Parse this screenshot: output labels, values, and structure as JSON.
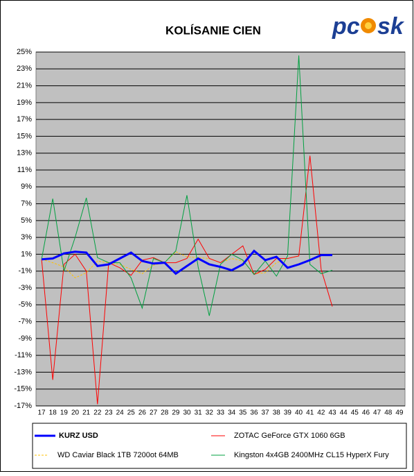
{
  "chart_data": {
    "type": "line",
    "title": "KOLÍSANIE CIEN",
    "logo": [
      "pc",
      "sk"
    ],
    "categories": [
      "17",
      "18",
      "19",
      "20",
      "21",
      "22",
      "23",
      "24",
      "25",
      "26",
      "27",
      "28",
      "29",
      "30",
      "31",
      "32",
      "33",
      "34",
      "35",
      "36",
      "37",
      "38",
      "39",
      "40",
      "41",
      "42",
      "43",
      "44",
      "45",
      "46",
      "47",
      "48",
      "49"
    ],
    "ylim": [
      -17,
      25
    ],
    "yticks": [
      {
        "value": -17,
        "label": "-17%"
      },
      {
        "value": -15,
        "label": "-15%"
      },
      {
        "value": -13,
        "label": "-13%"
      },
      {
        "value": -11,
        "label": "-11%"
      },
      {
        "value": -9,
        "label": "-9%"
      },
      {
        "value": -7,
        "label": "-7%"
      },
      {
        "value": -5,
        "label": "-5%"
      },
      {
        "value": -3,
        "label": "-3%"
      },
      {
        "value": -1,
        "label": "-1%"
      },
      {
        "value": 1,
        "label": "1%"
      },
      {
        "value": 3,
        "label": "3%"
      },
      {
        "value": 5,
        "label": "5%"
      },
      {
        "value": 7,
        "label": "7%"
      },
      {
        "value": 9,
        "label": "9%"
      },
      {
        "value": 11,
        "label": "11%"
      },
      {
        "value": 13,
        "label": "13%"
      },
      {
        "value": 15,
        "label": "15%"
      },
      {
        "value": 17,
        "label": "17%"
      },
      {
        "value": 19,
        "label": "19%"
      },
      {
        "value": 21,
        "label": "21%"
      },
      {
        "value": 23,
        "label": "23%"
      },
      {
        "value": 25,
        "label": "25%"
      }
    ],
    "grid": true,
    "series": [
      {
        "name": "KURZ USD",
        "color": "#0000ff",
        "values": [
          0.4,
          0.5,
          1.1,
          1.3,
          1.2,
          -0.4,
          -0.2,
          0.5,
          1.2,
          0.2,
          -0.1,
          0,
          -1.3,
          -0.4,
          0.5,
          -0.2,
          -0.5,
          -0.9,
          -0.2,
          1.4,
          0.3,
          0.7,
          -0.6,
          -0.2,
          0.3,
          0.9,
          0.9,
          null,
          null,
          null,
          null,
          null,
          null
        ]
      },
      {
        "name": "ZOTAC GeForce GTX 1060 6GB",
        "color": "#ff0000",
        "values": [
          0.4,
          -13.9,
          -0.2,
          1.0,
          -1.0,
          -16.8,
          0,
          -0.6,
          -1.5,
          0.3,
          0.6,
          0,
          0,
          0.5,
          2.8,
          0.5,
          0,
          1.0,
          2.0,
          -1.4,
          -0.8,
          0.5,
          0.5,
          0.8,
          12.7,
          -0.8,
          -5.2,
          null,
          null,
          null,
          null,
          null,
          null
        ]
      },
      {
        "name": "WD Caviar Black 1TB 7200ot 64MB",
        "color": "#ffc000",
        "values": [
          0.4,
          0,
          -0.5,
          -1.8,
          -1.2,
          0.2,
          0,
          -0.2,
          -0.8,
          -1.3,
          -0.3,
          0,
          1.3,
          0.7,
          0.6,
          0.5,
          0,
          0.5,
          0.2,
          -1.3,
          -1.2,
          0,
          0.5,
          0.8,
          null,
          null,
          null,
          null,
          null,
          null,
          null,
          null,
          null
        ]
      },
      {
        "name": "Kingston 4x4GB 2400MHz CL15 HyperX Fury",
        "color": "#00a040",
        "values": [
          0.4,
          7.6,
          -1.0,
          3.0,
          7.7,
          0.6,
          0,
          0,
          -1.8,
          -5.4,
          0.5,
          0,
          1.4,
          8.0,
          -0.5,
          -6.3,
          -0.2,
          1.0,
          0.3,
          -1.4,
          0.2,
          -1.6,
          0.8,
          24.6,
          -0.2,
          -1.3,
          -0.9,
          null,
          null,
          null,
          null,
          null,
          null
        ]
      }
    ]
  }
}
